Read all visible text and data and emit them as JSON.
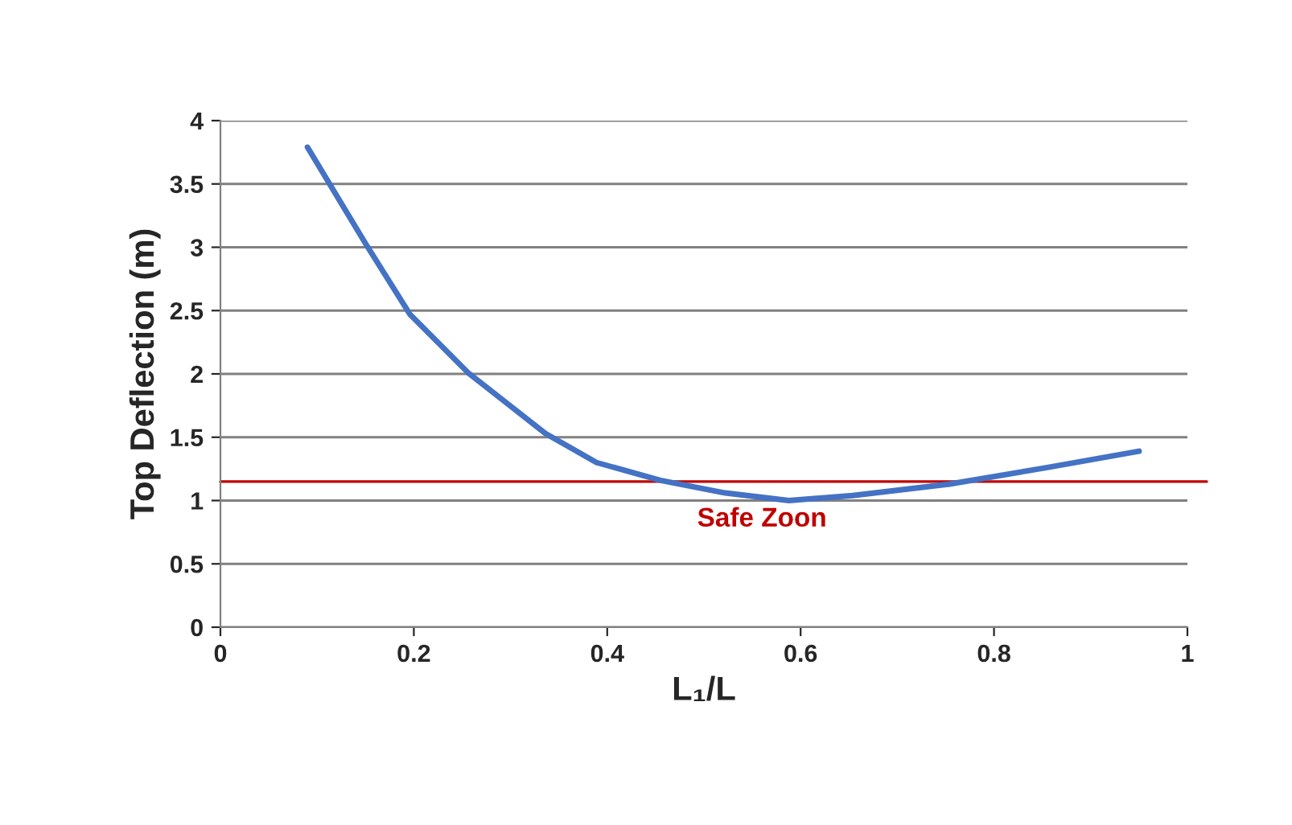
{
  "chart_data": {
    "type": "line",
    "xlabel": "L₁/L",
    "ylabel": "Top Deflection (m)",
    "x": [
      0.09,
      0.15,
      0.196,
      0.256,
      0.336,
      0.389,
      0.455,
      0.522,
      0.588,
      0.654,
      0.754,
      0.854,
      0.95
    ],
    "series": [
      {
        "color": "#4472c4",
        "values": [
          3.79,
          3.03,
          2.47,
          2.01,
          1.53,
          1.3,
          1.16,
          1.06,
          1.0,
          1.04,
          1.13,
          1.26,
          1.39
        ]
      }
    ],
    "xlim": [
      0,
      1
    ],
    "xticks": [
      0,
      0.2,
      0.4,
      0.6,
      0.8,
      1
    ],
    "ylim": [
      0,
      4
    ],
    "yticks": [
      0,
      0.5,
      1,
      1.5,
      2,
      2.5,
      3,
      3.5,
      4
    ],
    "grid": "y",
    "marker": "none",
    "line_style": "solid",
    "ref_lines": [
      {
        "axis": "y",
        "value": 1.15,
        "label": "Safe Zoon",
        "color": "#c00000"
      }
    ]
  }
}
